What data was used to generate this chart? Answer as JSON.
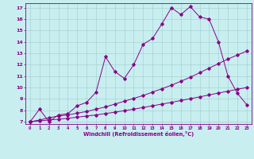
{
  "title": "",
  "xlabel": "Windchill (Refroidissement éolien,°C)",
  "bg_color": "#c8eef0",
  "line_color": "#880088",
  "grid_color": "#a0cccc",
  "xlim": [
    -0.5,
    23.5
  ],
  "ylim": [
    6.8,
    17.4
  ],
  "xticks": [
    0,
    1,
    2,
    3,
    4,
    5,
    6,
    7,
    8,
    9,
    10,
    11,
    12,
    13,
    14,
    15,
    16,
    17,
    18,
    19,
    20,
    21,
    22,
    23
  ],
  "yticks": [
    7,
    8,
    9,
    10,
    11,
    12,
    13,
    14,
    15,
    16,
    17
  ],
  "series1_x": [
    0,
    1,
    2,
    3,
    4,
    5,
    6,
    7,
    8,
    9,
    10,
    11,
    12,
    13,
    14,
    15,
    16,
    17,
    18,
    19,
    20,
    21,
    22,
    23
  ],
  "series1_y": [
    7.0,
    8.1,
    7.0,
    7.6,
    7.7,
    8.4,
    8.7,
    9.6,
    12.7,
    11.4,
    10.8,
    12.0,
    13.8,
    14.3,
    15.6,
    17.0,
    16.4,
    17.1,
    16.2,
    16.0,
    14.0,
    11.0,
    9.5,
    8.5
  ],
  "series2_x": [
    0,
    1,
    2,
    3,
    4,
    5,
    6,
    7,
    8,
    9,
    10,
    11,
    12,
    13,
    14,
    15,
    16,
    17,
    18,
    19,
    20,
    21,
    22,
    23
  ],
  "series2_y": [
    7.0,
    7.15,
    7.35,
    7.5,
    7.6,
    7.75,
    7.9,
    8.1,
    8.3,
    8.55,
    8.8,
    9.05,
    9.3,
    9.6,
    9.9,
    10.2,
    10.55,
    10.9,
    11.3,
    11.7,
    12.1,
    12.5,
    12.85,
    13.2
  ],
  "series3_x": [
    0,
    1,
    2,
    3,
    4,
    5,
    6,
    7,
    8,
    9,
    10,
    11,
    12,
    13,
    14,
    15,
    16,
    17,
    18,
    19,
    20,
    21,
    22,
    23
  ],
  "series3_y": [
    7.0,
    7.08,
    7.15,
    7.22,
    7.3,
    7.4,
    7.5,
    7.6,
    7.72,
    7.84,
    7.97,
    8.1,
    8.25,
    8.4,
    8.55,
    8.7,
    8.86,
    9.02,
    9.18,
    9.35,
    9.52,
    9.68,
    9.85,
    10.0
  ]
}
